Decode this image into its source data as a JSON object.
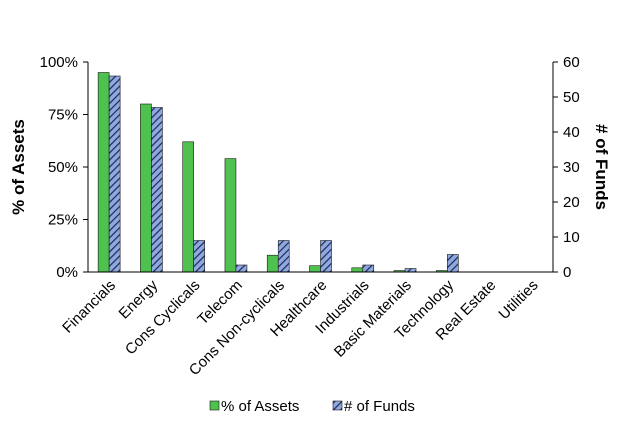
{
  "chart_data": {
    "type": "bar",
    "categories": [
      "Financials",
      "Energy",
      "Cons Cyclicals",
      "Telecom",
      "Cons Non-cyclicals",
      "Healthcare",
      "Industrials",
      "Basic Materials",
      "Technology",
      "Real Estate",
      "Utilities"
    ],
    "series": [
      {
        "name": "% of Assets",
        "axis": "left",
        "values": [
          95,
          80,
          62,
          54,
          8,
          3,
          2,
          0.7,
          0.7,
          0,
          0
        ],
        "color": "#4ec14e",
        "pattern": "solid"
      },
      {
        "name": "# of Funds",
        "axis": "right",
        "values": [
          56,
          47,
          9,
          2,
          9,
          9,
          2,
          1,
          5,
          0,
          0
        ],
        "color": "#8fa8e0",
        "pattern": "diagonal-hatch"
      }
    ],
    "y_left": {
      "label": "% of Assets",
      "ylim": [
        0,
        100
      ],
      "ticks": [
        "0%",
        "25%",
        "50%",
        "75%",
        "100%"
      ]
    },
    "y_right": {
      "label": "# of Funds",
      "ylim": [
        0,
        60
      ],
      "ticks": [
        "0",
        "10",
        "20",
        "30",
        "40",
        "50",
        "60"
      ]
    },
    "legend": {
      "placement": "bottom",
      "items": [
        "% of Assets",
        "# of Funds"
      ]
    },
    "grid": false
  }
}
